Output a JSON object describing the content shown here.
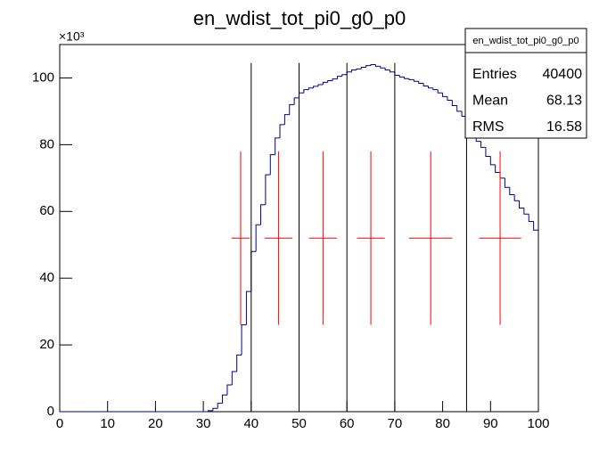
{
  "chart_data": {
    "type": "histogram",
    "title": "en_wdist_tot_pi0_g0_p0",
    "exponent": "×10³",
    "bins": [
      0,
      1,
      2,
      3,
      4,
      5,
      6,
      7,
      8,
      9,
      10,
      11,
      12,
      13,
      14,
      15,
      16,
      17,
      18,
      19,
      20,
      21,
      22,
      23,
      24,
      25,
      26,
      27,
      28,
      29,
      30,
      31,
      32,
      33,
      34,
      35,
      36,
      37,
      38,
      39,
      40,
      41,
      42,
      43,
      44,
      45,
      46,
      47,
      48,
      49,
      50,
      51,
      52,
      53,
      54,
      55,
      56,
      57,
      58,
      59,
      60,
      61,
      62,
      63,
      64,
      65,
      66,
      67,
      68,
      69,
      70,
      71,
      72,
      73,
      74,
      75,
      76,
      77,
      78,
      79,
      80,
      81,
      82,
      83,
      84,
      85,
      86,
      87,
      88,
      89,
      90,
      91,
      92,
      93,
      94,
      95,
      96,
      97,
      98,
      99,
      100
    ],
    "counts": [
      0,
      0,
      0,
      0,
      0,
      0,
      0,
      0,
      0,
      0,
      0,
      0,
      0,
      0,
      0,
      0,
      0,
      0,
      0,
      0,
      0,
      0,
      0,
      0,
      0,
      0,
      0,
      0,
      0,
      0,
      0,
      0.3,
      1,
      2.5,
      5,
      8,
      12,
      17,
      26,
      36,
      48,
      56,
      62,
      71,
      77,
      82,
      86,
      89,
      92,
      94,
      95.5,
      96.5,
      97,
      97.5,
      98,
      98.7,
      99.2,
      99.7,
      100.5,
      101,
      101.8,
      102.4,
      102.7,
      103.2,
      103.7,
      104,
      103.5,
      103,
      102.4,
      101.8,
      100.8,
      100.3,
      99.8,
      99.5,
      99,
      98.4,
      97.6,
      97,
      96.5,
      95.5,
      94.4,
      93.3,
      91.7,
      90,
      88.5,
      86.7,
      84.5,
      81,
      79.2,
      76.5,
      74,
      71.7,
      70,
      67.2,
      65,
      63.2,
      61,
      59.2,
      57,
      54.4
    ],
    "color": "#00008b",
    "vlines": {
      "x": [
        40,
        50,
        60,
        70,
        85,
        100
      ],
      "ymax": 104.5,
      "color": "#000000"
    },
    "points": {
      "x": [
        37.8,
        45.7,
        55,
        65,
        77.5,
        92
      ],
      "xerr": [
        1.9,
        2.9,
        2.9,
        2.9,
        4.5,
        4.4
      ],
      "y": [
        52,
        52,
        52,
        52,
        52,
        52
      ],
      "yerr": [
        26,
        26,
        26,
        26,
        26,
        26
      ],
      "color": "#ff0000"
    },
    "xlim": [
      0,
      100
    ],
    "ylim": [
      0,
      110
    ],
    "xticks": [
      0,
      10,
      20,
      30,
      40,
      50,
      60,
      70,
      80,
      90,
      100
    ],
    "yticks": [
      0,
      20,
      40,
      60,
      80,
      100
    ],
    "stats": {
      "title": "en_wdist_tot_pi0_g0_p0",
      "rows": [
        [
          "Entries",
          "40400"
        ],
        [
          "Mean",
          "68.13"
        ],
        [
          "RMS",
          "16.58"
        ]
      ]
    }
  }
}
